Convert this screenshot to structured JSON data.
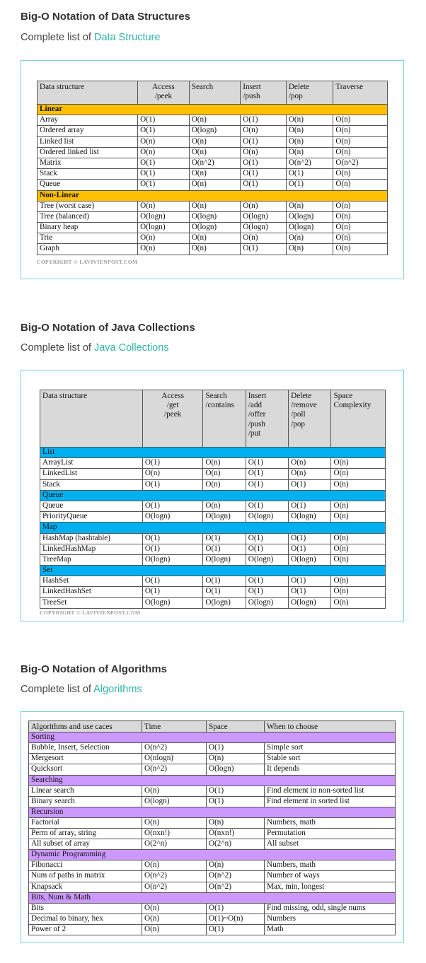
{
  "sections": [
    {
      "title": "Big-O Notation of Data Structures",
      "subtitle_prefix": "Complete list of ",
      "subtitle_link": "Data Structure",
      "headers": [
        "Data structure",
        "Access\n/peek",
        "Search",
        "Insert\n/push",
        "Delete\n/pop",
        "Traverse"
      ],
      "groups": [
        {
          "name": "Linear",
          "rows": [
            [
              "Array",
              "O(1)",
              "O(n)",
              "O(1)",
              "O(n)",
              "O(n)"
            ],
            [
              "Ordered array",
              "O(1)",
              "O(logn)",
              "O(n)",
              "O(n)",
              "O(n)"
            ],
            [
              "Linked list",
              "O(n)",
              "O(n)",
              "O(1)",
              "O(n)",
              "O(n)"
            ],
            [
              "Ordered linked list",
              "O(n)",
              "O(n)",
              "O(n)",
              "O(n)",
              "O(n)"
            ],
            [
              "Matrix",
              "O(1)",
              "O(n^2)",
              "O(1)",
              "O(n^2)",
              "O(n^2)"
            ],
            [
              "Stack",
              "O(1)",
              "O(n)",
              "O(1)",
              "O(1)",
              "O(n)"
            ],
            [
              "Queue",
              "O(1)",
              "O(n)",
              "O(1)",
              "O(1)",
              "O(n)"
            ]
          ]
        },
        {
          "name": "Non-Linear",
          "rows": [
            [
              "Tree (worst case)",
              "O(n)",
              "O(n)",
              "O(n)",
              "O(n)",
              "O(n)"
            ],
            [
              "Tree (balanced)",
              "O(logn)",
              "O(logn)",
              "O(logn)",
              "O(logn)",
              "O(n)"
            ],
            [
              "Binary heap",
              "O(logn)",
              "O(logn)",
              "O(logn)",
              "O(logn)",
              "O(n)"
            ],
            [
              "Trie",
              "O(n)",
              "O(n)",
              "O(n)",
              "O(n)",
              "O(n)"
            ],
            [
              "Graph",
              "O(n)",
              "O(n)",
              "O(1)",
              "O(n)",
              "O(n)"
            ]
          ]
        }
      ],
      "copyright": "COPYRIGHT © LAVIVIENPOST.COM",
      "group_color": "#ffc000"
    },
    {
      "title": "Big-O Notation of Java Collections",
      "subtitle_prefix": "Complete list of ",
      "subtitle_link": "Java Collections",
      "headers": [
        "Data structure",
        "Access\n/get\n/peek",
        "Search\n/contains",
        "Insert\n/add\n/offer\n/push\n/put",
        "Delete\n/remove\n/poll\n/pop",
        "Space\nComplexity"
      ],
      "groups": [
        {
          "name": "List",
          "rows": [
            [
              "ArrayList",
              "O(1)",
              "O(n)",
              "O(1)",
              "O(n)",
              "O(n)"
            ],
            [
              "LinkedList",
              "O(n)",
              "O(n)",
              "O(1)",
              "O(n)",
              "O(n)"
            ],
            [
              "Stack",
              "O(1)",
              "O(n)",
              "O(1)",
              "O(1)",
              "O(n)"
            ]
          ]
        },
        {
          "name": "Queue",
          "rows": [
            [
              "Queue",
              "O(1)",
              "O(n)",
              "O(1)",
              "O(1)",
              "O(n)"
            ],
            [
              "PriorityQueue",
              "O(logn)",
              "O(logn)",
              "O(logn)",
              "O(logn)",
              "O(n)"
            ]
          ]
        },
        {
          "name": "Map",
          "rows": [
            [
              "HashMap (hashtable)",
              "O(1)",
              "O(1)",
              "O(1)",
              "O(1)",
              "O(n)"
            ],
            [
              "LinkedHashMap",
              "O(1)",
              "O(1)",
              "O(1)",
              "O(1)",
              "O(n)"
            ],
            [
              "TreeMap",
              "O(logn)",
              "O(logn)",
              "O(logn)",
              "O(logn)",
              "O(n)"
            ]
          ]
        },
        {
          "name": "Set",
          "rows": [
            [
              "HashSet",
              "O(1)",
              "O(1)",
              "O(1)",
              "O(1)",
              "O(n)"
            ],
            [
              "LinkedHashSet",
              "O(1)",
              "O(1)",
              "O(1)",
              "O(1)",
              "O(n)"
            ],
            [
              "TreeSet",
              "O(logn)",
              "O(logn)",
              "O(logn)",
              "O(logn)",
              "O(n)"
            ]
          ]
        }
      ],
      "copyright": "COPYRIGHT © LAVIVIENPOST.COM",
      "group_color": "#00b0f0"
    },
    {
      "title": "Big-O Notation of Algorithms",
      "subtitle_prefix": "Complete list of ",
      "subtitle_link": "Algorithms",
      "headers": [
        "Algorithms and use caces",
        "Time",
        "Space",
        "When to choose"
      ],
      "groups": [
        {
          "name": "Sorting",
          "rows": [
            [
              "Bubble, Insert, Selection",
              "O(n^2)",
              "O(1)",
              "Simple sort"
            ],
            [
              "Mergesort",
              "O(nlogn)",
              "O(n)",
              "Stable sort"
            ],
            [
              "Quicksort",
              "O(n^2)",
              "O(logn)",
              "It depends"
            ]
          ]
        },
        {
          "name": "Searching",
          "rows": [
            [
              "Linear search",
              "O(n)",
              "O(1)",
              "Find element in non-sorted list"
            ],
            [
              "Binary search",
              "O(logn)",
              "O(1)",
              "Find element in sorted list"
            ]
          ]
        },
        {
          "name": "Recursion",
          "rows": [
            [
              "Factorial",
              "O(n)",
              "O(n)",
              "Numbers, math"
            ],
            [
              "Perm of array, string",
              "O(nxn!)",
              "O(nxn!)",
              "Permutation"
            ],
            [
              "All subset of array",
              "O(2^n)",
              "O(2^n)",
              "All subset"
            ]
          ]
        },
        {
          "name": "Dynamic Programming",
          "rows": [
            [
              "Fibonacci",
              "O(n)",
              "O(n)",
              "Numbers, math"
            ],
            [
              "Num of paths in matrix",
              "O(n^2)",
              "O(n^2)",
              "Number of ways"
            ],
            [
              "Knapsack",
              "O(n^2)",
              "O(n^2)",
              "Max, min, longest"
            ]
          ]
        },
        {
          "name": "Bits, Num & Math",
          "rows": [
            [
              "Bits",
              "O(n)",
              "O(1)",
              "Find missing, odd, single nums"
            ],
            [
              "Decimal to binary, hex",
              "O(n)",
              "O(1)~O(n)",
              "Numbers"
            ],
            [
              "Power of 2",
              "O(n)",
              "O(1)",
              "Math"
            ]
          ]
        }
      ],
      "group_color": "#cc99ff"
    }
  ]
}
